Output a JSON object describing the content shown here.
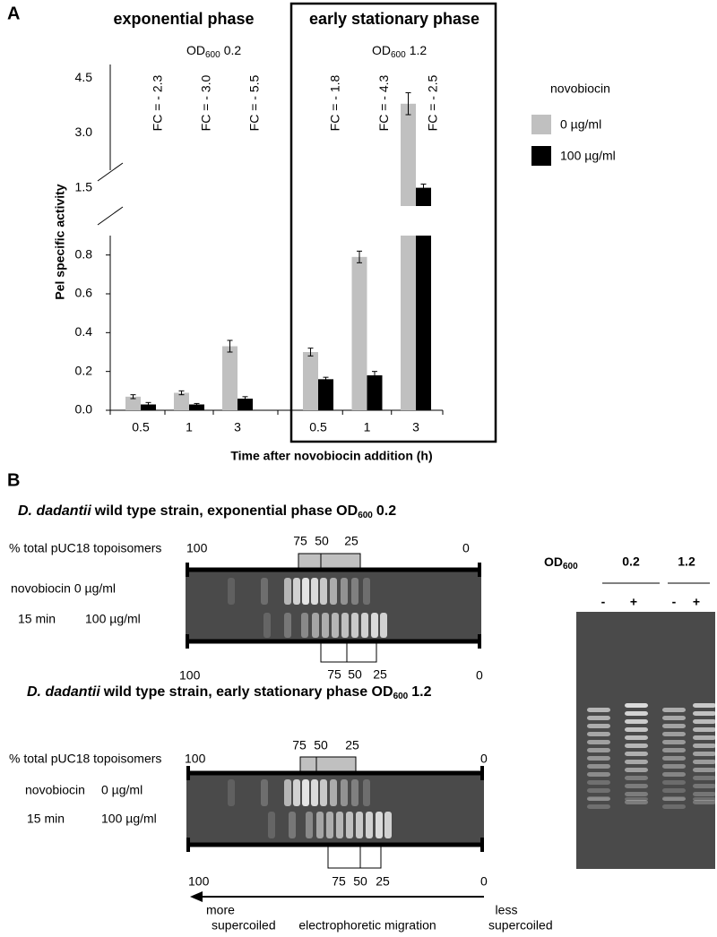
{
  "chart_data": {
    "type": "bar",
    "panel_label": "A",
    "y_label": "Pel specific activity",
    "x_label": "Time after novobiocin addition (h)",
    "categories": [
      "0.5",
      "1",
      "3",
      "0.5",
      "1",
      "3"
    ],
    "groups": [
      "exponential phase",
      "early stationary phase"
    ],
    "group_od": [
      {
        "main": "OD",
        "sub": "600",
        "rest": "0.2"
      },
      {
        "main": "OD",
        "sub": "600",
        "rest": "1.2"
      }
    ],
    "annotations": [
      "FC = - 2.3",
      "FC = - 3.0",
      "FC = - 5.5",
      "FC = - 1.8",
      "FC = - 4.3",
      "FC = - 2.5"
    ],
    "legend_title": "novobiocin",
    "series": [
      {
        "name": "0 µg/ml",
        "color": "#c0c0c0",
        "values": [
          0.07,
          0.09,
          0.33,
          0.3,
          0.79,
          3.8
        ],
        "errors": [
          0.01,
          0.01,
          0.03,
          0.02,
          0.03,
          0.3
        ]
      },
      {
        "name": "100 µg/ml",
        "color": "#000000",
        "values": [
          0.03,
          0.03,
          0.06,
          0.16,
          0.18,
          1.5
        ],
        "errors": [
          0.01,
          0.005,
          0.01,
          0.01,
          0.02,
          0.1
        ]
      }
    ],
    "ylim": [
      0,
      0.9
    ],
    "yticks": [
      {
        "value": 0,
        "label": "0.0"
      },
      0.2,
      0.4,
      0.6,
      0.8
    ],
    "y_break": true,
    "ylim_upper": [
      1.0,
      4.8
    ],
    "yticks_upper": [
      1.5,
      {
        "value": 3,
        "label": "3.0"
      },
      4.5
    ]
  },
  "panel_b": {
    "label": "B",
    "gels": [
      {
        "title": {
          "species": "D. dadantii",
          "text": "wild type strain, exponential phase OD",
          "sub": "600",
          "rest": "0.2"
        },
        "scale_label": "% total pUC18 topoisomers",
        "scale_left": "100",
        "scale_right": "0",
        "top_marks": [
          "75",
          "50",
          "25"
        ],
        "rows": [
          "novobiocin 0 µg/ml",
          "15 min",
          "100 µg/ml"
        ],
        "bottom_marks": [
          "75",
          "50",
          "25"
        ],
        "bottom_left": "100",
        "bottom_right": "0"
      },
      {
        "title": {
          "species": "D. dadantii",
          "text": "wild type strain, early stationary phase OD",
          "sub": "600",
          "rest": "1.2"
        },
        "scale_label": "% total pUC18 topoisomers",
        "scale_left": "100",
        "scale_right": "0",
        "top_marks": [
          "75",
          "50",
          "25"
        ],
        "rows": [
          "novobiocin",
          "0 µg/ml",
          "15 min",
          "100 µg/ml"
        ],
        "bottom_marks": [
          "75",
          "50",
          "25"
        ],
        "bottom_left": "100",
        "bottom_right": "0"
      }
    ],
    "arrow": {
      "left": [
        "more",
        "supercoiled"
      ],
      "center": "electrophoretic migration",
      "right": [
        "less",
        "supercoiled"
      ]
    },
    "side_gel": {
      "od_label": {
        "main": "OD",
        "sub": "600"
      },
      "groups": [
        "0.2",
        "1.2"
      ],
      "lanes": [
        "-",
        "+",
        "-",
        "+"
      ]
    }
  }
}
